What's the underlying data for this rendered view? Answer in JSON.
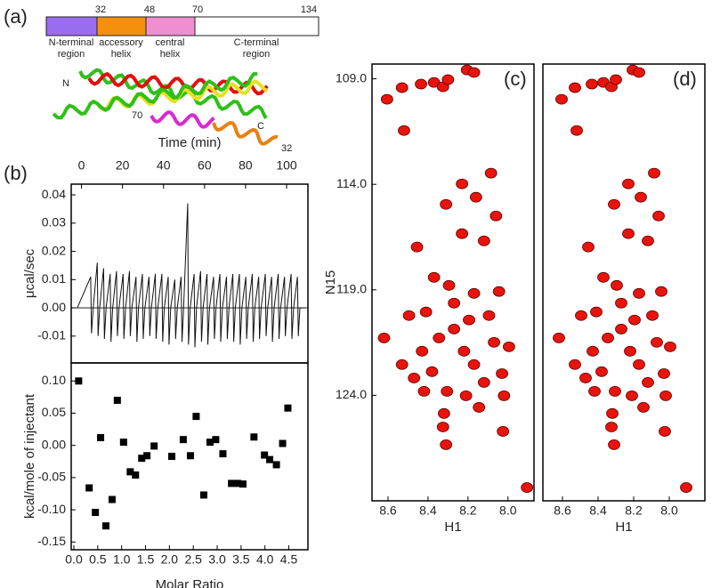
{
  "panel_labels": [
    "(a)",
    "(b)",
    "(c)",
    "(d)"
  ],
  "domain_diagram": {
    "boundaries": [
      "32",
      "48",
      "70",
      "134"
    ],
    "segments": [
      {
        "label": [
          "N-terminal",
          "region"
        ],
        "color": "#9b6cf0"
      },
      {
        "label": [
          "accessory",
          "helix"
        ],
        "color": "#f5900e"
      },
      {
        "label": [
          "central",
          "helix"
        ],
        "color": "#ef8fd0"
      },
      {
        "label": [
          "C-terminal",
          "region"
        ],
        "color": "#ffffff"
      }
    ],
    "structure_labels": [
      "N",
      "C",
      "70",
      "32"
    ]
  },
  "chart_data": [
    {
      "type": "line",
      "x_label": "Time (min)",
      "y_label": "μcal/sec",
      "xaxis_position": "top",
      "x": [
        -2,
        4.5,
        4.9,
        5.7,
        7.7,
        8.1,
        8.9,
        10.8,
        11.2,
        12.0,
        14.0,
        14.4,
        15.2,
        17.1,
        17.5,
        18.3,
        20.3,
        20.7,
        21.5,
        23.4,
        23.8,
        24.6,
        26.6,
        27.0,
        27.8,
        29.7,
        30.1,
        30.9,
        32.9,
        33.3,
        34.1,
        36.0,
        36.4,
        37.2,
        39.2,
        39.6,
        40.4,
        42.3,
        42.7,
        43.5,
        45.5,
        45.9,
        46.7,
        48.6,
        49.0,
        49.8,
        51.8,
        52.2,
        53.0,
        54.9,
        55.3,
        56.1,
        58.1,
        58.5,
        59.3,
        61.2,
        61.6,
        62.4,
        64.4,
        64.8,
        65.6,
        67.5,
        67.9,
        68.7,
        70.7,
        71.1,
        71.9,
        73.8,
        74.2,
        75.0,
        77.0,
        77.4,
        78.2,
        80.1,
        80.5,
        81.3,
        83.3,
        83.7,
        84.5,
        86.4,
        86.8,
        87.6,
        89.6,
        90.0,
        90.8,
        92.7,
        93.1,
        93.9,
        95.9,
        96.3,
        97.1,
        99.0,
        99.4,
        100.2,
        102.2,
        102.6,
        103.4,
        105.3,
        105.7,
        106.5,
        109
      ],
      "series": [
        {
          "color": "#111111",
          "values": [
            0,
            0.011,
            -0.009,
            0,
            0.016,
            -0.01,
            0,
            0.014,
            -0.011,
            0,
            0.012,
            -0.012,
            0,
            0.013,
            -0.01,
            0,
            0.012,
            -0.011,
            0,
            0.013,
            -0.01,
            0,
            0.011,
            -0.012,
            0,
            0.012,
            -0.011,
            0,
            0.011,
            -0.01,
            0,
            0.012,
            -0.011,
            0,
            0.012,
            -0.012,
            0,
            0.011,
            -0.013,
            0,
            0.01,
            -0.011,
            0,
            0.011,
            -0.012,
            0,
            0.037,
            -0.013,
            0,
            0.012,
            -0.014,
            0,
            0.013,
            -0.012,
            0,
            0.012,
            -0.013,
            0,
            0.011,
            -0.011,
            0,
            0.012,
            -0.012,
            0,
            0.011,
            -0.011,
            0,
            0.012,
            -0.012,
            0,
            0.012,
            -0.013,
            0,
            0.011,
            -0.011,
            0,
            0.012,
            -0.012,
            0,
            0.011,
            -0.011,
            0,
            0.012,
            -0.01,
            0,
            0.011,
            -0.012,
            0,
            0.012,
            -0.011,
            0,
            0.011,
            -0.01,
            0,
            0.012,
            -0.011,
            0,
            0.011,
            -0.01,
            0,
            0
          ]
        }
      ],
      "xlim": [
        -5,
        110.4
      ],
      "xticks": [
        0,
        20,
        40,
        60,
        80,
        100
      ],
      "ylim": [
        -0.0195,
        0.0438
      ],
      "yticks": [
        -0.01,
        {
          "value": 0,
          "label": "0.00"
        },
        0.01,
        0.02,
        0.03,
        0.04
      ]
    },
    {
      "type": "scatter",
      "marker": "square",
      "color": "#000000",
      "x_label": "Molar Ratio",
      "y_label": "kcal/mole of injectant",
      "x": [
        0.1,
        0.32,
        0.45,
        0.56,
        0.67,
        0.8,
        0.91,
        1.04,
        1.18,
        1.29,
        1.42,
        1.53,
        1.68,
        2.05,
        2.29,
        2.44,
        2.56,
        2.72,
        2.85,
        2.97,
        3.12,
        3.3,
        3.43,
        3.54,
        3.77,
        3.99,
        4.1,
        4.24,
        4.37,
        4.48
      ],
      "values": [
        0.1,
        -0.066,
        -0.104,
        0.012,
        -0.125,
        -0.084,
        0.07,
        0.005,
        -0.041,
        -0.046,
        -0.02,
        -0.016,
        -0.001,
        -0.017,
        0.009,
        -0.016,
        0.045,
        -0.077,
        0.005,
        0.009,
        -0.013,
        -0.059,
        -0.059,
        -0.06,
        0.013,
        -0.015,
        -0.022,
        -0.03,
        0.003,
        0.058
      ],
      "xlim": [
        -0.056,
        4.9
      ],
      "xticks": [
        {
          "value": 0,
          "label": "0.0"
        },
        0.5,
        {
          "value": 1,
          "label": "1.0"
        },
        1.5,
        {
          "value": 2,
          "label": "2.0"
        },
        2.5,
        {
          "value": 3,
          "label": "3.0"
        },
        3.5,
        {
          "value": 4,
          "label": "4.0"
        },
        4.5
      ],
      "ylim": [
        -0.162,
        0.128
      ],
      "yticks": [
        -0.15,
        {
          "value": -0.1,
          "label": "-0.10"
        },
        -0.05,
        {
          "value": 0,
          "label": "0.00"
        },
        0.05,
        {
          "value": 0.1,
          "label": "0.10"
        }
      ]
    },
    {
      "type": "scatter",
      "marker": "ellipse",
      "color": "#e8140c",
      "x_label": "H1",
      "y_label": "N15",
      "x": [
        8.205,
        8.17,
        8.435,
        8.37,
        8.325,
        8.3,
        8.53,
        8.605,
        8.52,
        8.085,
        8.23,
        8.31,
        8.16,
        8.06,
        8.455,
        8.23,
        8.12,
        8.295,
        8.37,
        8.17,
        8.045,
        8.62,
        8.53,
        8.43,
        8.345,
        8.27,
        8.195,
        8.095,
        8.47,
        8.38,
        8.305,
        8.21,
        8.12,
        8.03,
        7.995,
        8.32,
        8.145,
        8.02,
        8.325,
        8.31,
        8.025,
        7.905,
        8.41,
        8.27,
        8.495,
        8.07,
        8.22,
        8.17,
        8.42
      ],
      "values": [
        108.58,
        108.7,
        109.25,
        109.17,
        109.38,
        109.04,
        109.42,
        109.97,
        111.45,
        113.47,
        113.98,
        114.95,
        114.61,
        115.5,
        116.97,
        116.34,
        116.68,
        118.79,
        118.41,
        119.17,
        119.08,
        121.28,
        122.54,
        121.91,
        121.28,
        120.86,
        120.43,
        120.22,
        123.18,
        122.88,
        123.81,
        124.02,
        123.39,
        122.97,
        121.7,
        124.86,
        124.57,
        124.02,
        125.5,
        126.34,
        125.71,
        128.37,
        120.05,
        119.63,
        120.22,
        121.49,
        121.91,
        122.54,
        123.81
      ],
      "xlim": [
        8.68,
        7.87
      ],
      "xticks": [
        8.6,
        8.4,
        8.2,
        {
          "value": 8,
          "label": "8.0"
        }
      ],
      "ylim": [
        129.0,
        108.3
      ],
      "yticks": [
        {
          "value": 109,
          "label": "109.0"
        },
        {
          "value": 114,
          "label": "114.0"
        },
        {
          "value": 119,
          "label": "119.0"
        },
        {
          "value": 124,
          "label": "124.0"
        }
      ]
    },
    {
      "type": "scatter",
      "marker": "ellipse",
      "color": "#e8140c",
      "x_label": "H1",
      "x": [
        8.205,
        8.17,
        8.435,
        8.37,
        8.325,
        8.3,
        8.53,
        8.605,
        8.52,
        8.085,
        8.23,
        8.31,
        8.16,
        8.06,
        8.455,
        8.23,
        8.12,
        8.295,
        8.37,
        8.17,
        8.045,
        8.62,
        8.53,
        8.43,
        8.345,
        8.27,
        8.195,
        8.095,
        8.47,
        8.38,
        8.305,
        8.21,
        8.12,
        8.03,
        7.995,
        8.32,
        8.145,
        8.02,
        8.325,
        8.31,
        8.025,
        7.905,
        8.41,
        8.27,
        8.495,
        8.07,
        8.22,
        8.17,
        8.42
      ],
      "values": [
        108.58,
        108.7,
        109.25,
        109.17,
        109.38,
        109.04,
        109.42,
        109.97,
        111.45,
        113.47,
        113.98,
        114.95,
        114.61,
        115.5,
        116.97,
        116.34,
        116.68,
        118.79,
        118.41,
        119.17,
        119.08,
        121.28,
        122.54,
        121.91,
        121.28,
        120.86,
        120.43,
        120.22,
        123.18,
        122.88,
        123.81,
        124.02,
        123.39,
        122.97,
        121.7,
        124.86,
        124.57,
        124.02,
        125.5,
        126.34,
        125.71,
        128.37,
        120.05,
        119.63,
        120.22,
        121.49,
        121.91,
        122.54,
        123.81
      ],
      "xlim": [
        8.71,
        7.8
      ],
      "xticks": [
        8.6,
        8.4,
        8.2,
        {
          "value": 8,
          "label": "8.0"
        }
      ],
      "ylim": [
        129.0,
        108.3
      ]
    }
  ]
}
